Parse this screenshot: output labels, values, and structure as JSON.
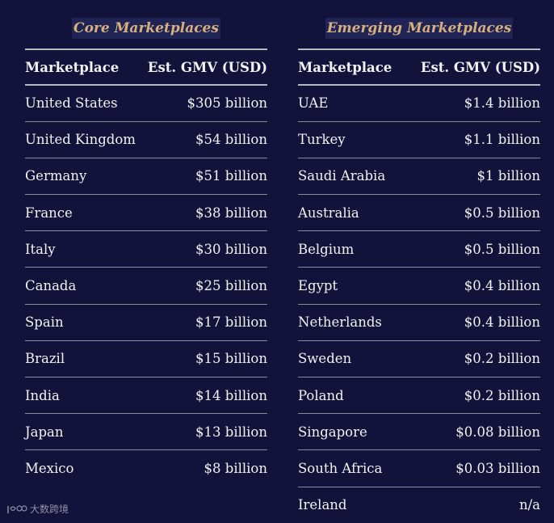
{
  "core": {
    "title": "Core Marketplaces",
    "header": {
      "name": "Marketplace",
      "value": "Est. GMV (USD)"
    },
    "rows": [
      {
        "name": "United States",
        "value": "$305 billion"
      },
      {
        "name": "United Kingdom",
        "value": "$54 billion"
      },
      {
        "name": "Germany",
        "value": "$51 billion"
      },
      {
        "name": "France",
        "value": "$38 billion"
      },
      {
        "name": "Italy",
        "value": "$30 billion"
      },
      {
        "name": "Canada",
        "value": "$25 billion"
      },
      {
        "name": "Spain",
        "value": "$17 billion"
      },
      {
        "name": "Brazil",
        "value": "$15 billion"
      },
      {
        "name": "India",
        "value": "$14 billion"
      },
      {
        "name": "Japan",
        "value": "$13 billion"
      },
      {
        "name": "Mexico",
        "value": "$8 billion"
      }
    ]
  },
  "emerging": {
    "title": "Emerging Marketplaces",
    "header": {
      "name": "Marketplace",
      "value": "Est. GMV (USD)"
    },
    "rows": [
      {
        "name": "UAE",
        "value": "$1.4 billion"
      },
      {
        "name": "Turkey",
        "value": "$1.1 billion"
      },
      {
        "name": "Saudi Arabia",
        "value": "$1 billion"
      },
      {
        "name": "Australia",
        "value": "$0.5 billion"
      },
      {
        "name": "Belgium",
        "value": "$0.5 billion"
      },
      {
        "name": "Egypt",
        "value": "$0.4 billion"
      },
      {
        "name": "Netherlands",
        "value": "$0.4 billion"
      },
      {
        "name": "Sweden",
        "value": "$0.2 billion"
      },
      {
        "name": "Poland",
        "value": "$0.2 billion"
      },
      {
        "name": "Singapore",
        "value": "$0.08 billion"
      },
      {
        "name": "South Africa",
        "value": "$0.03 billion"
      },
      {
        "name": "Ireland",
        "value": "n/a"
      }
    ]
  },
  "watermark": {
    "text": "大数跨境"
  },
  "colors": {
    "background": "#13123a",
    "title_text": "#d6b07e",
    "title_bg": "#1f2454",
    "body_text": "#f2f2f2",
    "rule": "#8c8c98"
  }
}
